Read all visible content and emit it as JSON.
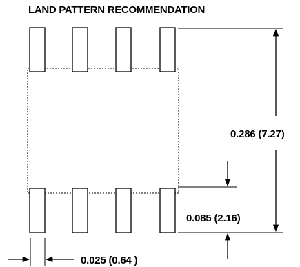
{
  "title": "LAND PATTERN RECOMMENDATION",
  "dimensions": {
    "total_span": "0.286 (7.27)",
    "pad_length": "0.085 (2.16)",
    "pad_width": "0.025 (0.64 )"
  },
  "package": {
    "pads_top_row": 4,
    "pads_bottom_row": 4
  }
}
